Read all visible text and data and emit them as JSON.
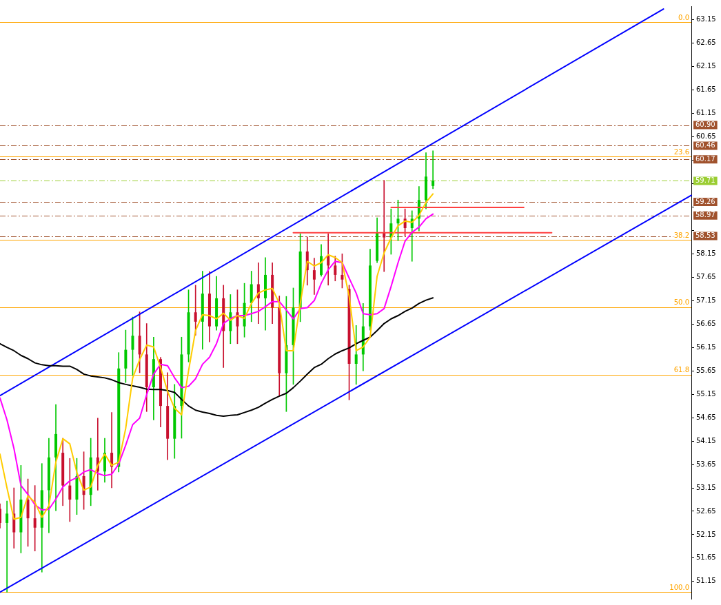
{
  "chart_data": {
    "type": "candlestick",
    "categories": [
      null,
      null,
      null,
      null,
      null,
      null,
      null,
      null,
      null,
      null,
      null,
      null,
      null,
      null,
      null,
      null,
      null,
      null,
      null,
      null,
      null,
      null,
      null,
      null,
      null,
      null,
      null,
      null,
      null,
      null,
      null,
      null,
      null,
      null,
      null,
      null,
      null,
      null,
      null,
      null,
      null,
      null,
      null,
      null,
      null,
      null,
      null,
      null,
      null,
      null,
      null,
      null,
      null,
      null,
      null,
      null,
      null,
      null,
      null,
      null,
      null,
      null,
      null,
      null,
      null,
      null,
      null,
      null,
      null,
      null,
      null,
      null,
      null,
      null,
      null,
      null,
      null,
      null,
      null,
      null,
      null,
      null,
      null,
      null,
      null,
      null,
      null,
      null,
      null,
      null,
      null,
      null,
      null,
      null,
      null,
      null,
      null,
      null,
      null,
      null
    ],
    "ohlc": [
      [
        52.7,
        52.81,
        52.29,
        52.4
      ],
      [
        52.4,
        52.87,
        50.92,
        52.6
      ],
      [
        52.6,
        53.15,
        51.86,
        52.2
      ],
      [
        52.2,
        53.63,
        51.76,
        52.9
      ],
      [
        52.9,
        53.34,
        51.9,
        52.5
      ],
      [
        52.5,
        53.2,
        51.8,
        52.3
      ],
      [
        52.3,
        53.67,
        51.35,
        53.1
      ],
      [
        53.1,
        54.21,
        52.19,
        53.8
      ],
      [
        53.8,
        54.93,
        52.66,
        54.3
      ],
      [
        53.9,
        54.21,
        52.77,
        53.2
      ],
      [
        53.2,
        53.78,
        52.43,
        52.9
      ],
      [
        52.9,
        53.78,
        52.58,
        53.4
      ],
      [
        53.4,
        53.92,
        52.69,
        53.0
      ],
      [
        53.0,
        54.21,
        52.77,
        53.8
      ],
      [
        53.8,
        54.64,
        53.1,
        53.5
      ],
      [
        53.5,
        54.21,
        53.27,
        53.9
      ],
      [
        53.9,
        54.76,
        53.15,
        53.6
      ],
      [
        53.6,
        56.04,
        53.49,
        55.7
      ],
      [
        55.7,
        56.52,
        55.4,
        56.1
      ],
      [
        56.1,
        56.8,
        55.55,
        56.4
      ],
      [
        56.4,
        56.91,
        55.61,
        56.0
      ],
      [
        56.0,
        56.66,
        54.78,
        55.3
      ],
      [
        55.3,
        56.37,
        54.6,
        55.9
      ],
      [
        55.9,
        55.94,
        54.45,
        54.9
      ],
      [
        54.9,
        55.61,
        53.75,
        54.2
      ],
      [
        54.2,
        55.36,
        53.78,
        54.9
      ],
      [
        54.9,
        56.37,
        54.21,
        56.0
      ],
      [
        56.0,
        57.38,
        55.84,
        56.9
      ],
      [
        56.9,
        57.48,
        56.41,
        56.7
      ],
      [
        56.7,
        57.78,
        56.11,
        57.3
      ],
      [
        57.3,
        57.77,
        56.27,
        56.6
      ],
      [
        56.6,
        57.67,
        56.52,
        57.2
      ],
      [
        57.2,
        57.48,
        55.72,
        56.5
      ],
      [
        56.5,
        57.28,
        56.23,
        56.9
      ],
      [
        56.9,
        57.38,
        56.23,
        56.6
      ],
      [
        56.6,
        57.52,
        56.37,
        57.1
      ],
      [
        57.1,
        57.78,
        56.7,
        57.5
      ],
      [
        57.5,
        57.96,
        56.66,
        57.2
      ],
      [
        57.2,
        58.07,
        56.52,
        57.7
      ],
      [
        57.7,
        57.96,
        56.66,
        57.0
      ],
      [
        57.0,
        57.25,
        55.12,
        55.6
      ],
      [
        55.6,
        57.24,
        54.78,
        56.2
      ],
      [
        56.2,
        57.42,
        55.36,
        57.0
      ],
      [
        57.0,
        58.58,
        56.7,
        58.2
      ],
      [
        58.2,
        58.51,
        57.48,
        57.8
      ],
      [
        57.8,
        58.06,
        57.28,
        57.6
      ],
      [
        57.7,
        58.35,
        57.67,
        58.1
      ],
      [
        58.1,
        58.58,
        57.48,
        57.9
      ],
      [
        57.9,
        58.1,
        57.57,
        57.7
      ],
      [
        57.7,
        58.15,
        57.42,
        57.6
      ],
      [
        57.4,
        57.48,
        55.03,
        55.8
      ],
      [
        55.8,
        56.62,
        55.36,
        56.0
      ],
      [
        56.0,
        57.09,
        55.65,
        56.6
      ],
      [
        56.6,
        58.25,
        56.52,
        57.9
      ],
      [
        58.0,
        58.92,
        57.96,
        58.6
      ],
      [
        58.6,
        59.72,
        57.77,
        58.5
      ],
      [
        58.5,
        59.11,
        58.14,
        58.8
      ],
      [
        58.8,
        59.3,
        58.43,
        58.9
      ],
      [
        58.9,
        59.11,
        58.53,
        58.7
      ],
      [
        58.7,
        59.07,
        57.99,
        58.9
      ],
      [
        58.9,
        59.59,
        58.64,
        59.3
      ],
      [
        59.3,
        60.31,
        59.11,
        59.8
      ],
      [
        59.6,
        60.35,
        59.54,
        59.71
      ],
      null,
      null,
      null,
      null,
      null,
      null,
      null,
      null,
      null,
      null,
      null,
      null,
      null,
      null,
      null,
      null,
      null,
      null,
      null,
      null,
      null,
      null,
      null,
      null,
      null,
      null,
      null,
      null,
      null,
      null,
      null,
      null,
      null,
      null,
      null,
      null,
      null
    ],
    "colors": [
      "#c8102e",
      "#00c800",
      "#c8102e",
      "#00c800",
      "#c8102e",
      "#c8102e",
      "#00c800",
      "#00c800",
      "#00c800",
      "#c8102e",
      "#c8102e",
      "#00c800",
      "#c8102e",
      "#00c800",
      "#c8102e",
      "#00c800",
      "#c8102e",
      "#00c800",
      "#00c800",
      "#00c800",
      "#c8102e",
      "#c8102e",
      "#00c800",
      "#c8102e",
      "#c8102e",
      "#00c800",
      "#00c800",
      "#00c800",
      "#c8102e",
      "#00c800",
      "#c8102e",
      "#00c800",
      "#c8102e",
      "#00c800",
      "#c8102e",
      "#00c800",
      "#00c800",
      "#c8102e",
      "#00c800",
      "#c8102e",
      "#c8102e",
      "#00c800",
      "#00c800",
      "#00c800",
      "#c8102e",
      "#c8102e",
      "#00c800",
      "#c8102e",
      "#c8102e",
      "#c8102e",
      "#c8102e",
      "#00c800",
      "#00c800",
      "#00c800",
      "#00c800",
      "#c8102e",
      "#00c800",
      "#00c800",
      "#c8102e",
      "#00c800",
      "#00c800",
      "#00c800",
      "#00c800",
      null,
      null,
      null,
      null,
      null,
      null,
      null,
      null,
      null,
      null,
      null,
      null,
      null,
      null,
      null,
      null,
      null,
      null,
      null,
      null,
      null,
      null,
      null,
      null,
      null,
      null,
      null,
      null,
      null,
      null,
      null,
      null,
      null,
      null,
      null,
      null,
      null
    ],
    "series": [
      {
        "type": "line",
        "color": "#ffcc00",
        "values": [
          53.87,
          53.15,
          52.48,
          52.52,
          52.98,
          52.84,
          52.52,
          52.77,
          53.7,
          54.2,
          54.09,
          53.48,
          53.1,
          53.17,
          53.63,
          53.87,
          53.63,
          53.7,
          54.42,
          55.5,
          55.89,
          56.2,
          56.16,
          55.72,
          55.21,
          54.85,
          54.71,
          55.65,
          56.51,
          56.85,
          56.83,
          56.76,
          56.88,
          56.73,
          56.83,
          56.77,
          57.09,
          57.31,
          57.38,
          57.41,
          57.09,
          56.08,
          56.08,
          57.09,
          57.99,
          57.89,
          57.96,
          58.13,
          58.07,
          57.96,
          57.24,
          56.08,
          56.16,
          56.37,
          57.67,
          58.17,
          58.49,
          58.75,
          58.85,
          58.82,
          58.97,
          59.25,
          59.43,
          null,
          null,
          null,
          null,
          null,
          null,
          null,
          null,
          null,
          null,
          null,
          null,
          null,
          null,
          null,
          null,
          null,
          null,
          null,
          null,
          null,
          null,
          null,
          null,
          null,
          null,
          null,
          null,
          null,
          null,
          null,
          null,
          null,
          null,
          null,
          null,
          null
        ]
      },
      {
        "type": "line",
        "color": "#ff00ff",
        "values": [
          55.07,
          54.6,
          53.99,
          53.2,
          53.01,
          52.79,
          52.68,
          52.69,
          52.91,
          53.17,
          53.3,
          53.37,
          53.49,
          53.54,
          53.46,
          53.41,
          53.44,
          53.66,
          54.06,
          54.5,
          54.64,
          55.14,
          55.58,
          55.79,
          55.76,
          55.5,
          55.29,
          55.32,
          55.48,
          55.79,
          55.94,
          56.23,
          56.66,
          56.77,
          56.83,
          56.83,
          56.87,
          56.92,
          57.02,
          57.13,
          57.13,
          56.95,
          56.76,
          56.98,
          57.0,
          57.15,
          57.52,
          57.81,
          57.99,
          57.96,
          57.63,
          57.31,
          56.87,
          56.85,
          56.87,
          56.98,
          57.45,
          57.96,
          58.42,
          58.61,
          58.72,
          58.9,
          59.0,
          null,
          null,
          null,
          null,
          null,
          null,
          null,
          null,
          null,
          null,
          null,
          null,
          null,
          null,
          null,
          null,
          null,
          null,
          null,
          null,
          null,
          null,
          null,
          null,
          null,
          null,
          null,
          null,
          null,
          null,
          null,
          null,
          null,
          null,
          null,
          null,
          null
        ]
      },
      {
        "type": "line",
        "color": "#000000",
        "values": [
          56.23,
          56.15,
          56.08,
          55.98,
          55.91,
          55.82,
          55.78,
          55.76,
          55.76,
          55.75,
          55.75,
          55.68,
          55.58,
          55.54,
          55.52,
          55.5,
          55.46,
          55.4,
          55.36,
          55.33,
          55.3,
          55.26,
          55.25,
          55.25,
          55.23,
          55.19,
          55.04,
          54.9,
          54.81,
          54.77,
          54.74,
          54.7,
          54.68,
          54.7,
          54.71,
          54.76,
          54.81,
          54.87,
          54.96,
          55.04,
          55.11,
          55.17,
          55.29,
          55.43,
          55.58,
          55.72,
          55.79,
          55.91,
          56.01,
          56.08,
          56.14,
          56.23,
          56.3,
          56.37,
          56.51,
          56.66,
          56.76,
          56.83,
          56.92,
          56.99,
          57.09,
          57.16,
          57.21,
          null,
          null,
          null,
          null,
          null,
          null,
          null,
          null,
          null,
          null,
          null,
          null,
          null,
          null,
          null,
          null,
          null,
          null,
          null,
          null,
          null,
          null,
          null,
          null,
          null,
          null,
          null,
          null,
          null,
          null,
          null,
          null,
          null,
          null,
          null,
          null,
          null
        ]
      },
      {
        "type": "line",
        "color": "#0000ff",
        "values": [
          55.12,
          null,
          null,
          null,
          null,
          null,
          null,
          null,
          null,
          null,
          null,
          null,
          null,
          null,
          null,
          null,
          null,
          null,
          null,
          null,
          null,
          null,
          null,
          null,
          null,
          null,
          null,
          null,
          null,
          null,
          null,
          null,
          null,
          null,
          null,
          null,
          null,
          null,
          null,
          null,
          null,
          null,
          null,
          null,
          null,
          null,
          null,
          null,
          null,
          null,
          null,
          null,
          null,
          null,
          null,
          null,
          null,
          null,
          null,
          null,
          null,
          null,
          null,
          null,
          null,
          null,
          null,
          null,
          null,
          null,
          null,
          null,
          null,
          null,
          null,
          null,
          null,
          null,
          null,
          null,
          null,
          null,
          null,
          null,
          null,
          null,
          null,
          null,
          null,
          null,
          null,
          null,
          null,
          null,
          null,
          63.38,
          null,
          null,
          null,
          null
        ]
      },
      {
        "type": "line",
        "color": "#0000ff",
        "values": [
          50.92,
          null,
          null,
          null,
          null,
          null,
          null,
          null,
          null,
          null,
          null,
          null,
          null,
          null,
          null,
          null,
          null,
          null,
          null,
          null,
          null,
          null,
          null,
          null,
          null,
          null,
          null,
          null,
          null,
          null,
          null,
          null,
          null,
          null,
          null,
          null,
          null,
          null,
          null,
          null,
          null,
          null,
          null,
          null,
          null,
          null,
          null,
          null,
          null,
          null,
          null,
          null,
          null,
          null,
          null,
          null,
          null,
          null,
          null,
          null,
          null,
          null,
          null,
          null,
          null,
          null,
          null,
          null,
          null,
          null,
          null,
          null,
          null,
          null,
          null,
          null,
          null,
          null,
          null,
          null,
          null,
          null,
          null,
          null,
          null,
          null,
          null,
          null,
          null,
          null,
          null,
          null,
          null,
          null,
          null,
          null,
          null,
          null,
          null,
          59.4
        ]
      },
      {
        "type": "line",
        "color": "#ff4040",
        "values": [
          null,
          null,
          null,
          null,
          null,
          null,
          null,
          null,
          null,
          null,
          null,
          null,
          null,
          null,
          null,
          null,
          null,
          null,
          null,
          null,
          null,
          null,
          null,
          null,
          null,
          null,
          null,
          null,
          null,
          null,
          null,
          null,
          null,
          null,
          null,
          null,
          null,
          null,
          null,
          null,
          null,
          null,
          null,
          null,
          null,
          null,
          null,
          null,
          null,
          null,
          null,
          null,
          null,
          null,
          null,
          null,
          59.14,
          null,
          null,
          null,
          null,
          null,
          null,
          null,
          null,
          null,
          null,
          null,
          null,
          null,
          null,
          null,
          null,
          null,
          null,
          59.14,
          null,
          null,
          null,
          null,
          null,
          null,
          null,
          null,
          null,
          null,
          null,
          null,
          null,
          null,
          null,
          null,
          null,
          null,
          null,
          null,
          null,
          null,
          null,
          null
        ]
      },
      {
        "type": "line",
        "color": "#ff4040",
        "values": [
          null,
          null,
          null,
          null,
          null,
          null,
          null,
          null,
          null,
          null,
          null,
          null,
          null,
          null,
          null,
          null,
          null,
          null,
          null,
          null,
          null,
          null,
          null,
          null,
          null,
          null,
          null,
          null,
          null,
          null,
          null,
          null,
          null,
          null,
          null,
          null,
          null,
          null,
          null,
          null,
          null,
          null,
          58.6,
          null,
          null,
          null,
          null,
          null,
          null,
          null,
          null,
          null,
          null,
          null,
          null,
          null,
          null,
          null,
          null,
          null,
          null,
          null,
          null,
          null,
          null,
          null,
          null,
          null,
          null,
          null,
          null,
          null,
          null,
          null,
          null,
          null,
          null,
          null,
          null,
          58.6,
          null,
          null,
          null,
          null,
          null,
          null,
          null,
          null,
          null,
          null,
          null,
          null,
          null,
          null,
          null,
          null,
          null,
          null,
          null,
          null
        ]
      }
    ],
    "ylim": [
      50.78,
      63.44
    ],
    "yticks": [
      51.15,
      51.65,
      52.15,
      52.65,
      53.15,
      53.65,
      54.15,
      54.65,
      55.15,
      55.65,
      56.15,
      56.65,
      57.15,
      57.65,
      58.15,
      {
        "value": 58.65,
        "label": null
      },
      {
        "value": 59.15,
        "label": null
      },
      {
        "value": 59.65,
        "label": null
      },
      {
        "value": 60.15,
        "label": null
      },
      60.65,
      61.15,
      61.65,
      62.15,
      62.65,
      63.15
    ],
    "ref_lines": [
      {
        "axis": "y",
        "value": 63.1,
        "color": "#ffa500",
        "line_style": "solid"
      },
      {
        "axis": "y",
        "value": 60.23,
        "color": "#ffa500",
        "line_style": "solid"
      },
      {
        "axis": "y",
        "value": 58.45,
        "color": "#ffa500",
        "line_style": "solid"
      },
      {
        "axis": "y",
        "value": 57.01,
        "color": "#ffa500",
        "line_style": "solid"
      },
      {
        "axis": "y",
        "value": 55.57,
        "color": "#ffa500",
        "line_style": "solid"
      },
      {
        "axis": "y",
        "value": 50.92,
        "color": "#ffa500",
        "line_style": "solid"
      },
      {
        "axis": "y",
        "value": 60.9,
        "label": "60.90",
        "color": "#a0522d",
        "line_style": "dashed"
      },
      {
        "axis": "y",
        "value": 60.46,
        "label": "60.46",
        "color": "#a0522d",
        "line_style": "dashed"
      },
      {
        "axis": "y",
        "value": 60.17,
        "label": "60.17",
        "color": "#a0522d",
        "line_style": "dashed"
      },
      {
        "axis": "y",
        "value": 59.71,
        "label": "59.71",
        "color": "#9acd32",
        "line_style": "dashed"
      },
      {
        "axis": "y",
        "value": 59.26,
        "label": "59.26",
        "color": "#a0522d",
        "line_style": "dashed"
      },
      {
        "axis": "y",
        "value": 58.97,
        "label": "58.97",
        "color": "#a0522d",
        "line_style": "dashed"
      },
      {
        "axis": "y",
        "value": 58.53,
        "label": "58.53",
        "color": "#a0522d",
        "line_style": "dashed"
      }
    ],
    "annotations": [
      {
        "text": "0.0",
        "y": 63.1
      },
      {
        "text": "23.6",
        "y": 60.23
      },
      {
        "text": "38.2",
        "y": 58.45
      },
      {
        "text": "50.0",
        "y": 57.01
      },
      {
        "text": "61.8",
        "y": 55.57
      },
      {
        "text": "100.0",
        "y": 50.92
      }
    ],
    "grid": false,
    "legend": false
  }
}
